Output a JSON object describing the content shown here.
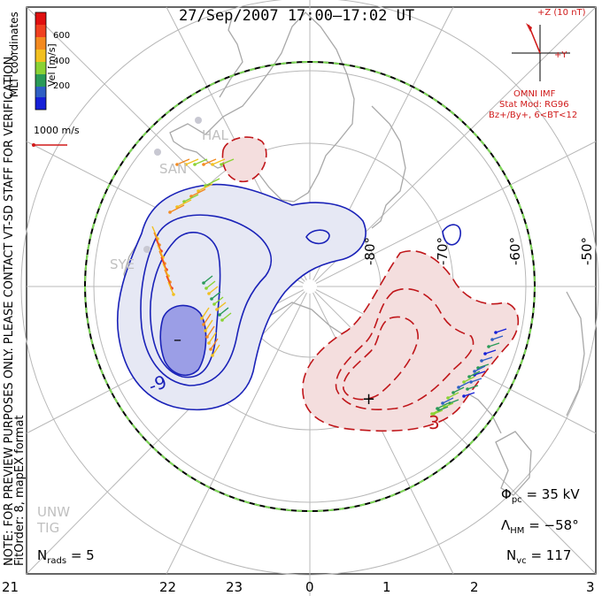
{
  "title": "27/Sep/2007 17:00–17:02 UT",
  "side_note_line1": "NOTE: FOR PREVIEW PURPOSES ONLY. PLEASE CONTACT VT-SD STAFF FOR VERIFICATION.",
  "side_note_line2": "FitOrder: 8, mapEX format",
  "coord_system": "MLT coordinates",
  "colorbar": {
    "label": "Vel [m/s]",
    "ticks": [
      "600",
      "400",
      "200"
    ]
  },
  "scale_vector": "1000 m/s",
  "imf": {
    "z_label": "+Z (10 nT)",
    "y_label": "+Y",
    "source": "OMNI IMF",
    "model": "Stat Mod: RG96",
    "condition": "Bz+/By+, 6<BT<12"
  },
  "stations": [
    "HAL",
    "SAN",
    "SYE",
    "UNW",
    "TIG"
  ],
  "contour_labels": {
    "neg": "-9",
    "pos": "3"
  },
  "extrema": {
    "min": "–",
    "max": "+"
  },
  "lat_labels": [
    "-80°",
    "-70°",
    "-60°",
    "-50°"
  ],
  "mlt_ticks": [
    "21",
    "22",
    "23",
    "0",
    "1",
    "2",
    "3"
  ],
  "stats": {
    "phi_pc_label": "Φ",
    "phi_pc_sub": "pc",
    "phi_pc_value": "= 35 kV",
    "lambda_hm_label": "Λ",
    "lambda_hm_sub": "HM",
    "lambda_hm_value": "= −58°",
    "n_vc_label": "N",
    "n_vc_sub": "vc",
    "n_vc_value": "= 117",
    "n_rads_label": "N",
    "n_rads_sub": "rads",
    "n_rads_value": "= 5"
  },
  "colors": {
    "negative_contour": "#1a22b8",
    "positive_contour": "#c0161a",
    "negative_fill": "#e6e8f4",
    "positive_fill": "#f4dede",
    "hm_boundary": "#7ed957"
  }
}
